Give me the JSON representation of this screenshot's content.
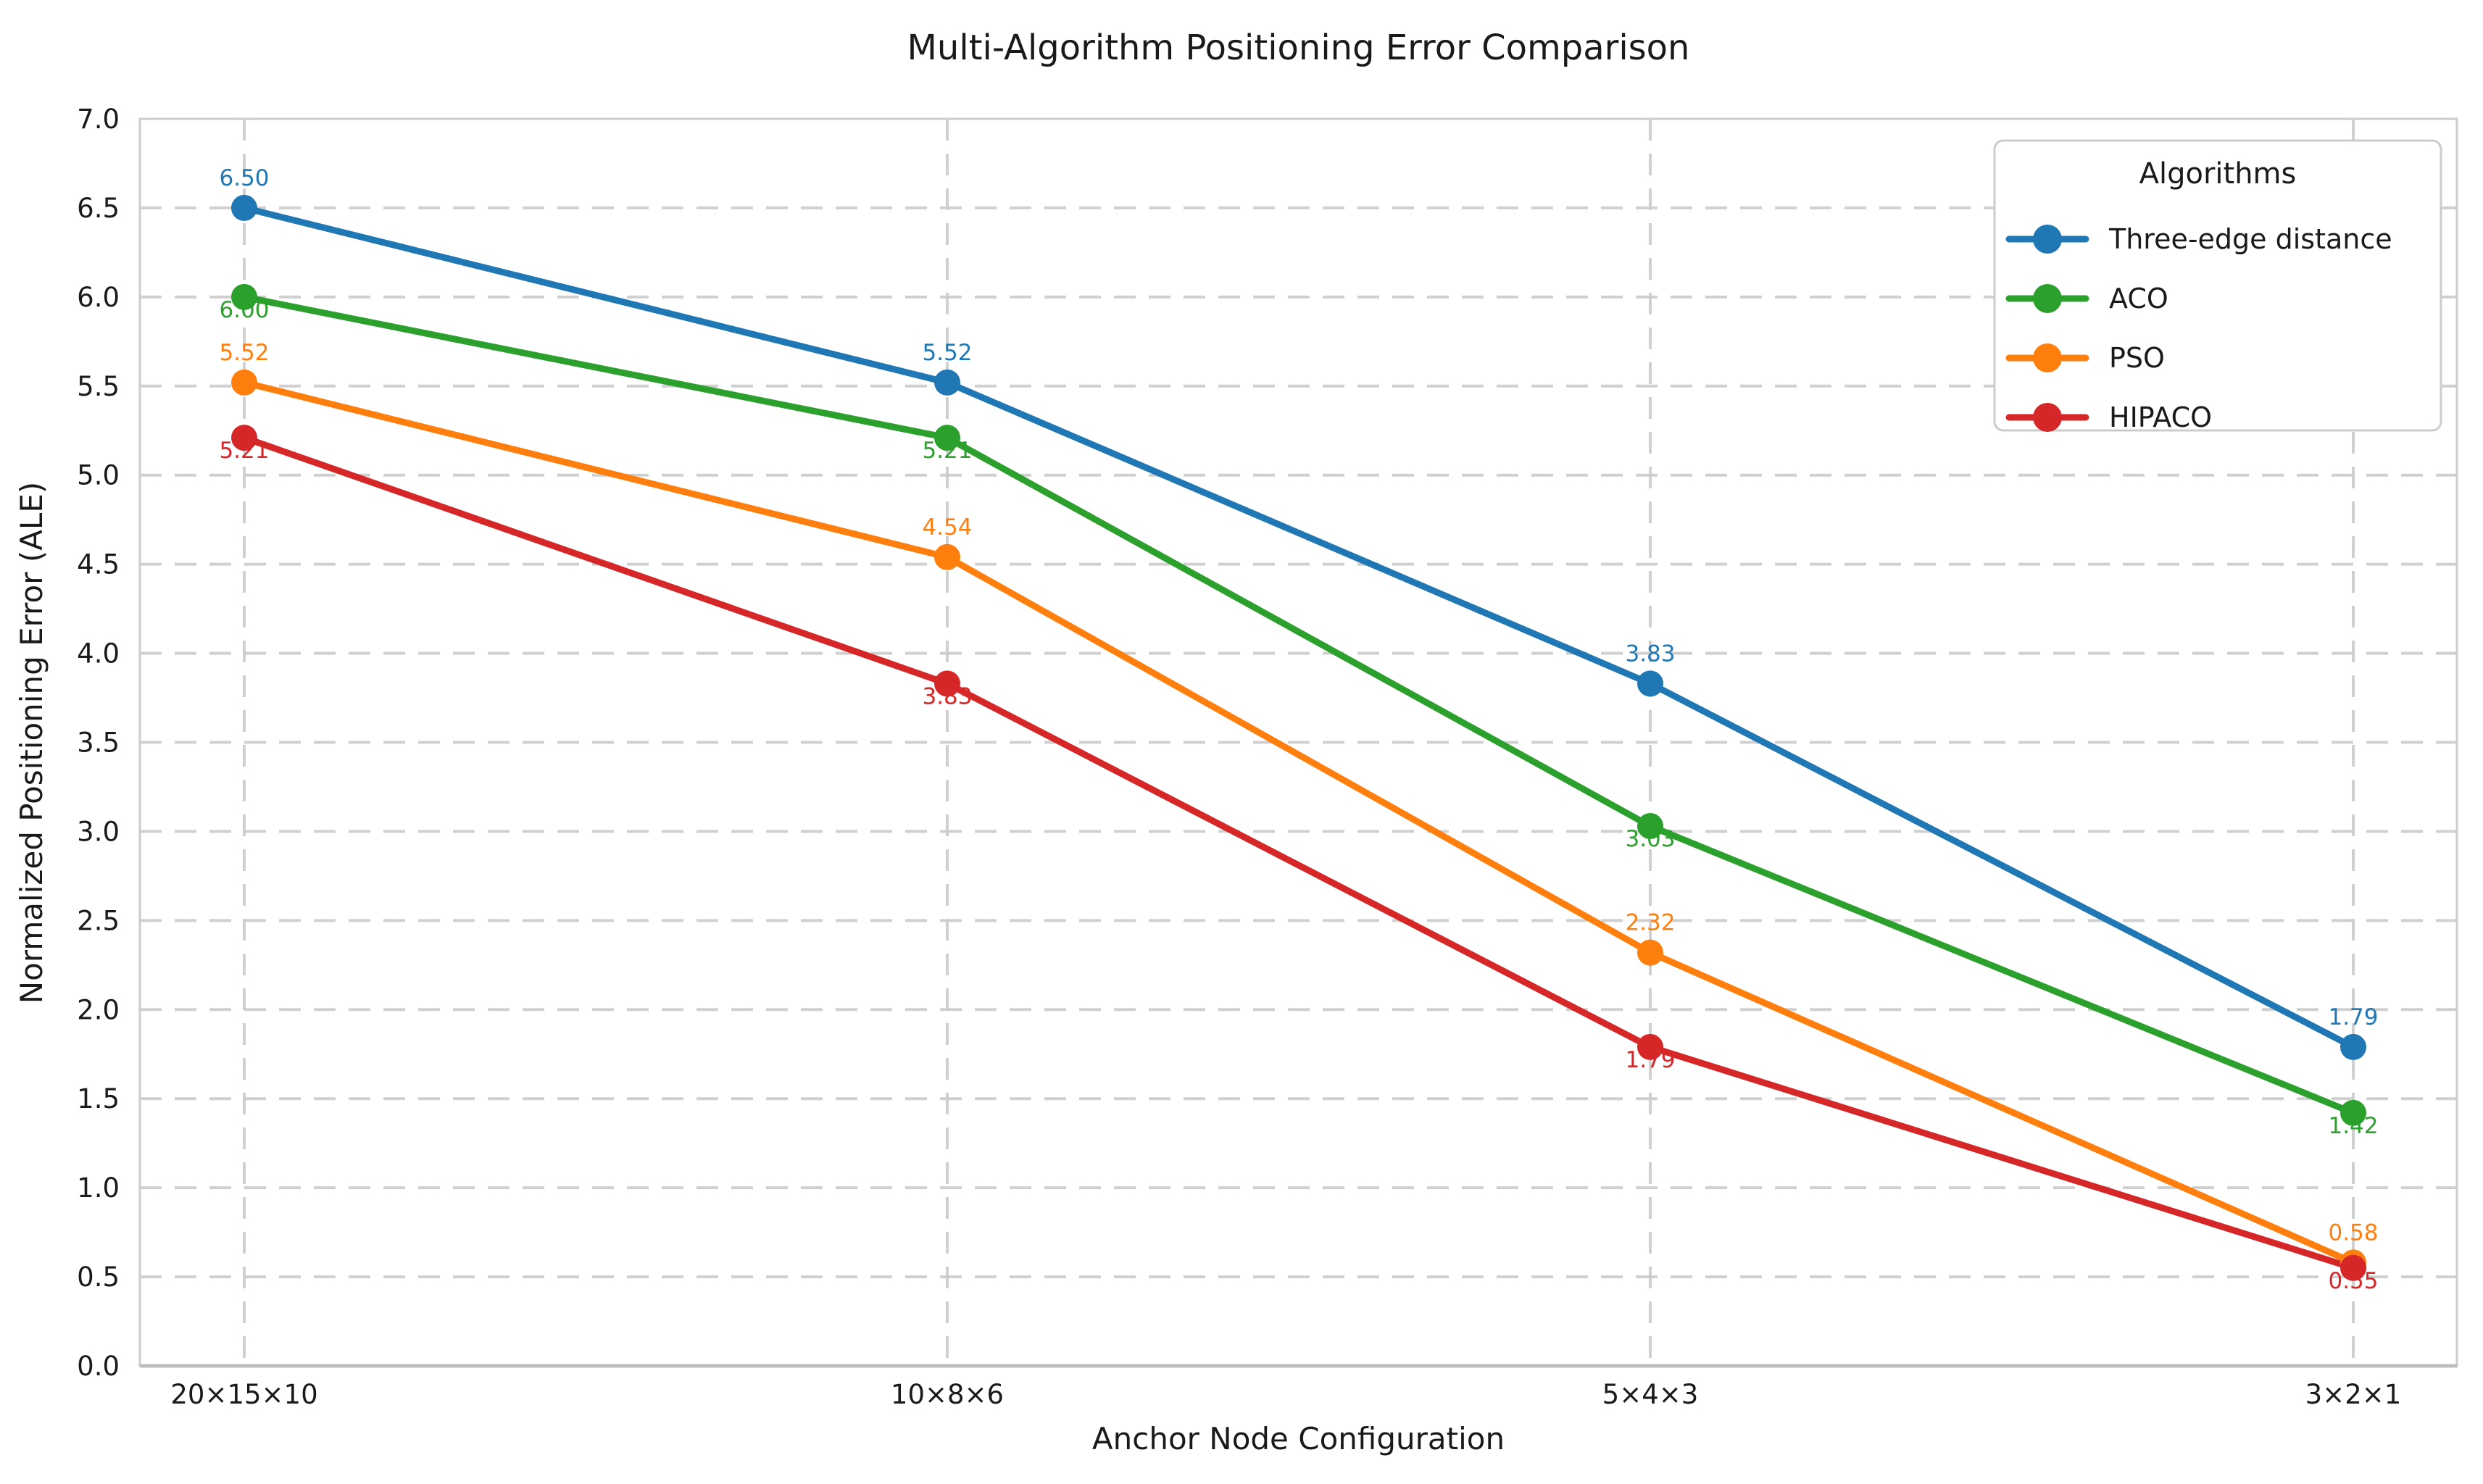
{
  "chart_data": {
    "type": "line",
    "title": "Multi-Algorithm Positioning Error Comparison",
    "xlabel": "Anchor Node Configuration",
    "ylabel": "Normalized Positioning Error (ALE)",
    "categories": [
      "20×15×10",
      "10×8×6",
      "5×4×3",
      "3×2×1"
    ],
    "ylim": [
      0.0,
      7.0
    ],
    "ytick_step": 0.5,
    "yticks": [
      "0.0",
      "0.5",
      "1.0",
      "1.5",
      "2.0",
      "2.5",
      "3.0",
      "3.5",
      "4.0",
      "4.5",
      "5.0",
      "5.5",
      "6.0",
      "6.5",
      "7.0"
    ],
    "grid": "dashed-both-axes",
    "grid_color": "#cccccc",
    "background": "#ffffff",
    "legend": {
      "title": "Algorithms",
      "position": "upper-right"
    },
    "series": [
      {
        "name": "Three-edge distance",
        "color": "#1f77b4",
        "values": [
          6.5,
          5.52,
          3.83,
          1.79
        ],
        "point_labels": [
          "6.50",
          "5.52",
          "3.83",
          "1.79"
        ],
        "label_position": "above"
      },
      {
        "name": "ACO",
        "color": "#2ca02c",
        "values": [
          6.0,
          5.21,
          3.03,
          1.42
        ],
        "point_labels": [
          "6.00",
          "5.21",
          "3.03",
          "1.42"
        ],
        "label_position": "below"
      },
      {
        "name": "PSO",
        "color": "#ff7f0e",
        "values": [
          5.52,
          4.54,
          2.32,
          0.58
        ],
        "point_labels": [
          "5.52",
          "4.54",
          "2.32",
          "0.58"
        ],
        "label_position": "above"
      },
      {
        "name": "HIPACO",
        "color": "#d62728",
        "values": [
          5.21,
          3.83,
          1.79,
          0.55
        ],
        "point_labels": [
          "5.21",
          "3.83",
          "1.79",
          "0.55"
        ],
        "label_position": "below"
      }
    ]
  }
}
